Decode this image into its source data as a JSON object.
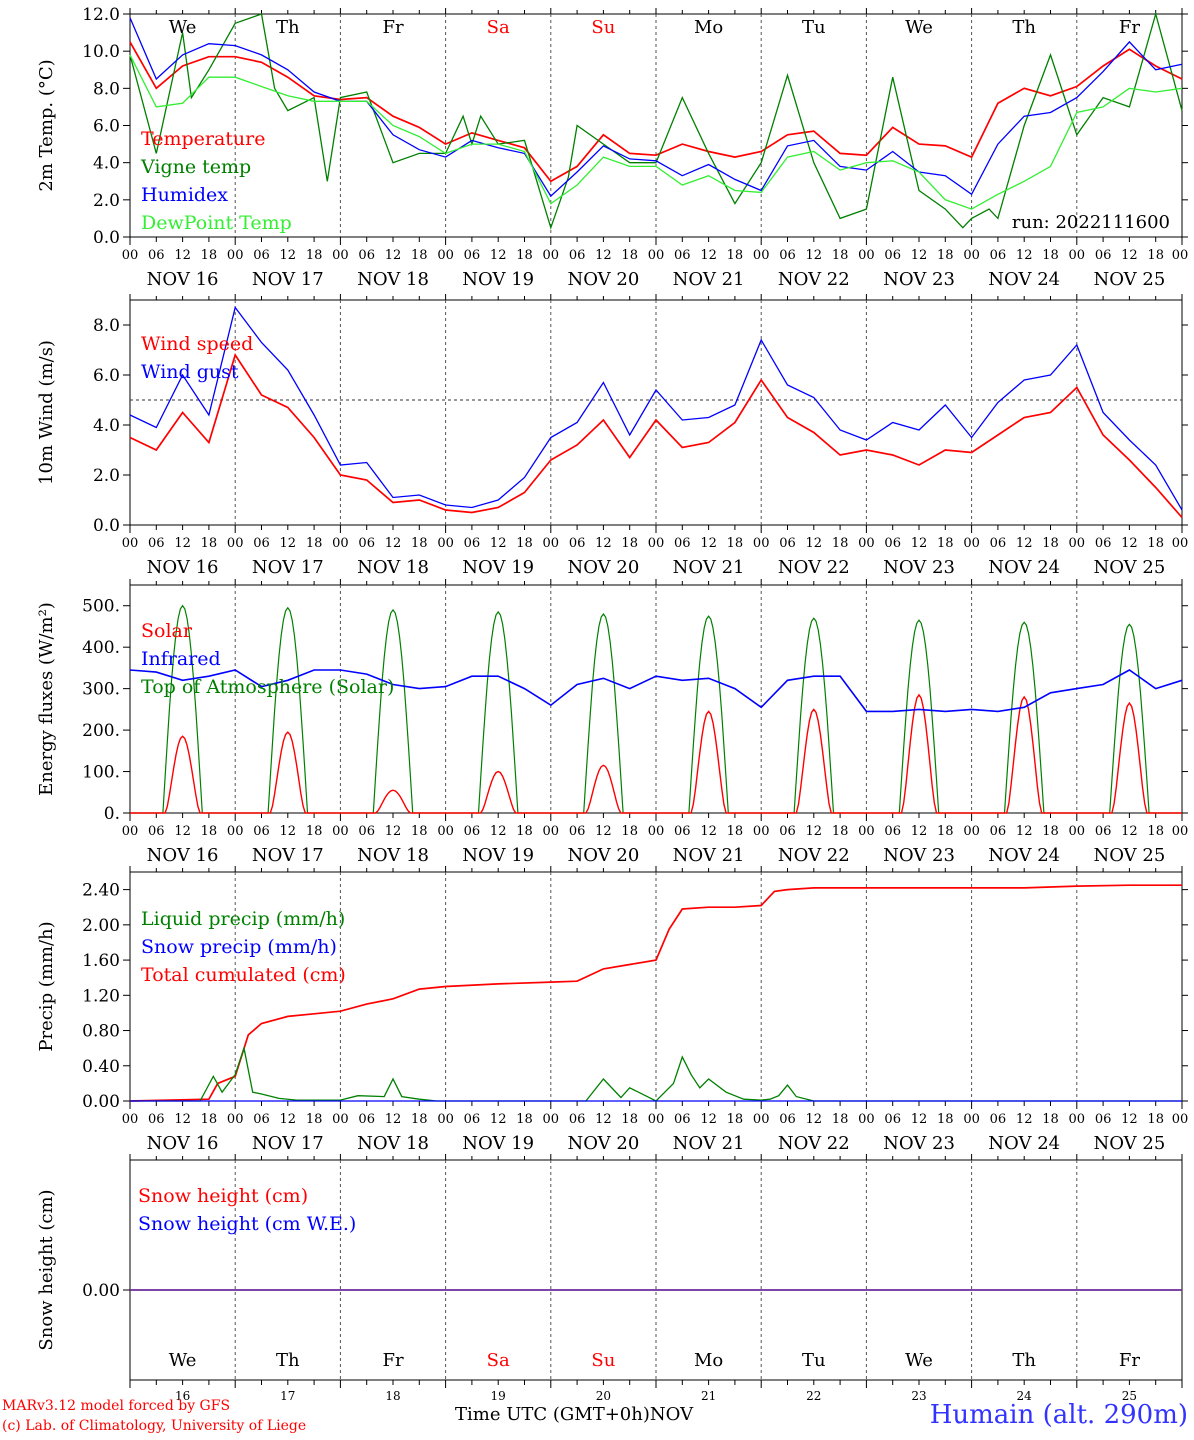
{
  "run_label": "run: 2022111600",
  "footer": {
    "credit_line1": "MARv3.12 model forced by GFS",
    "credit_line2": "(c) Lab. of Climatology, University of Liege",
    "x_title": "Time UTC (GMT+0h)",
    "month": "NOV",
    "station": "Humain (alt. 290m)"
  },
  "days": {
    "labels": [
      "We",
      "Th",
      "Fr",
      "Sa",
      "Su",
      "Mo",
      "Tu",
      "We",
      "Th",
      "Fr"
    ],
    "weekend_color": "#ff0000",
    "weekend_index": [
      3,
      4
    ],
    "dates": [
      "NOV 16",
      "NOV 17",
      "NOV 18",
      "NOV 19",
      "NOV 20",
      "NOV 21",
      "NOV 22",
      "NOV 23",
      "NOV 24",
      "NOV 25"
    ],
    "day_numbers": [
      "16",
      "17",
      "18",
      "19",
      "20",
      "21",
      "22",
      "23",
      "24",
      "25"
    ],
    "hour_ticks": [
      "00",
      "06",
      "12",
      "18"
    ],
    "final_tick": "00"
  },
  "colors": {
    "red": "#ff0000",
    "green": "#008000",
    "blue": "#0000ff",
    "lightgreen": "#33ee33",
    "purple": "#7030a0"
  },
  "chart_data": [
    {
      "id": "temp",
      "type": "line",
      "ylabel": "2m Temp. (°C)",
      "ylim": [
        0,
        12
      ],
      "yticks": [
        "0.0",
        "2.0",
        "4.0",
        "6.0",
        "8.0",
        "10.0",
        "12.0"
      ],
      "x_unit": "hours since 2022-11-16 00 UTC",
      "legend": [
        "Temperature",
        "Vigne temp",
        "Humidex",
        "DewPoint Temp"
      ],
      "series": [
        {
          "name": "Temperature",
          "color": "red",
          "x": [
            0,
            6,
            12,
            18,
            24,
            30,
            36,
            42,
            48,
            54,
            60,
            66,
            72,
            78,
            84,
            90,
            96,
            102,
            108,
            114,
            120,
            126,
            132,
            138,
            144,
            150,
            156,
            162,
            168,
            174,
            180,
            186,
            192,
            198,
            204,
            210,
            216,
            222,
            228,
            234,
            240
          ],
          "y": [
            10.5,
            8.0,
            9.2,
            9.7,
            9.7,
            9.4,
            8.6,
            7.6,
            7.4,
            7.5,
            6.5,
            5.9,
            5.0,
            5.6,
            5.2,
            4.8,
            3.0,
            3.8,
            5.5,
            4.5,
            4.4,
            5.0,
            4.6,
            4.3,
            4.6,
            5.5,
            5.7,
            4.5,
            4.4,
            5.9,
            5.0,
            4.9,
            4.3,
            7.2,
            8.0,
            7.6,
            8.1,
            9.2,
            10.1,
            9.2,
            8.5
          ]
        },
        {
          "name": "Vigne temp",
          "color": "green",
          "x": [
            0,
            6,
            12,
            14,
            18,
            24,
            30,
            33,
            36,
            42,
            45,
            48,
            54,
            60,
            66,
            72,
            76,
            78,
            80,
            84,
            90,
            96,
            100,
            102,
            108,
            114,
            120,
            126,
            132,
            138,
            144,
            150,
            156,
            162,
            168,
            174,
            180,
            186,
            190,
            192,
            196,
            198,
            204,
            210,
            216,
            222,
            228,
            234,
            240
          ],
          "y": [
            9.8,
            4.5,
            11.0,
            7.5,
            9.0,
            11.5,
            12.0,
            8.0,
            6.8,
            7.5,
            3.0,
            7.5,
            7.8,
            4.0,
            4.5,
            4.5,
            6.5,
            5.0,
            6.5,
            5.0,
            5.2,
            0.5,
            3.2,
            6.0,
            5.0,
            4.0,
            4.0,
            7.5,
            4.5,
            1.8,
            4.0,
            8.7,
            4.0,
            1.0,
            1.5,
            8.6,
            2.5,
            1.5,
            0.5,
            1.0,
            1.5,
            1.0,
            6.0,
            9.8,
            5.5,
            7.5,
            7.0,
            12.0,
            6.8
          ]
        },
        {
          "name": "Humidex",
          "color": "blue",
          "x": [
            0,
            6,
            12,
            18,
            24,
            30,
            36,
            42,
            48,
            54,
            60,
            66,
            72,
            78,
            84,
            90,
            96,
            102,
            108,
            114,
            120,
            126,
            132,
            138,
            144,
            150,
            156,
            162,
            168,
            174,
            180,
            186,
            192,
            198,
            204,
            210,
            216,
            222,
            228,
            234,
            240
          ],
          "y": [
            11.8,
            8.5,
            9.8,
            10.4,
            10.3,
            9.8,
            9.0,
            7.8,
            7.3,
            7.3,
            5.5,
            4.7,
            4.3,
            5.2,
            4.8,
            4.5,
            2.2,
            3.5,
            4.9,
            4.2,
            4.1,
            3.3,
            3.9,
            3.1,
            2.5,
            4.9,
            5.2,
            3.8,
            3.6,
            4.6,
            3.5,
            3.3,
            2.3,
            5.0,
            6.5,
            6.7,
            7.5,
            8.9,
            10.5,
            9.0,
            9.3
          ]
        },
        {
          "name": "DewPoint Temp",
          "color": "lightgreen",
          "x": [
            0,
            6,
            12,
            18,
            24,
            30,
            36,
            42,
            48,
            54,
            60,
            66,
            72,
            78,
            84,
            90,
            96,
            102,
            108,
            114,
            120,
            126,
            132,
            138,
            144,
            150,
            156,
            162,
            168,
            174,
            180,
            186,
            192,
            198,
            204,
            210,
            216,
            222,
            228,
            234,
            240
          ],
          "y": [
            9.8,
            7.0,
            7.2,
            8.6,
            8.6,
            8.1,
            7.6,
            7.3,
            7.3,
            7.3,
            6.0,
            5.4,
            4.5,
            5.0,
            5.0,
            4.6,
            1.8,
            2.8,
            4.3,
            3.8,
            3.8,
            2.8,
            3.3,
            2.5,
            2.4,
            4.3,
            4.6,
            3.6,
            4.0,
            4.1,
            3.5,
            2.0,
            1.5,
            2.3,
            3.0,
            3.8,
            6.7,
            7.0,
            8.0,
            7.8,
            8.0
          ]
        }
      ]
    },
    {
      "id": "wind",
      "type": "line",
      "ylabel": "10m Wind (m/s)",
      "ylim": [
        0,
        9
      ],
      "yticks": [
        "0.0",
        "2.0",
        "4.0",
        "6.0",
        "8.0"
      ],
      "reference_line": 5.0,
      "legend": [
        "Wind speed",
        "Wind gust"
      ],
      "series": [
        {
          "name": "Wind speed",
          "color": "red",
          "x": [
            0,
            6,
            12,
            18,
            24,
            30,
            36,
            42,
            48,
            54,
            60,
            66,
            72,
            78,
            84,
            90,
            96,
            102,
            108,
            114,
            120,
            126,
            132,
            138,
            144,
            150,
            156,
            162,
            168,
            174,
            180,
            186,
            192,
            198,
            204,
            210,
            216,
            222,
            228,
            234,
            240
          ],
          "y": [
            3.5,
            3.0,
            4.5,
            3.3,
            6.8,
            5.2,
            4.7,
            3.5,
            2.0,
            1.8,
            0.9,
            1.0,
            0.6,
            0.5,
            0.7,
            1.3,
            2.6,
            3.2,
            4.2,
            2.7,
            4.2,
            3.1,
            3.3,
            4.1,
            5.8,
            4.3,
            3.7,
            2.8,
            3.0,
            2.8,
            2.4,
            3.0,
            2.9,
            3.6,
            4.3,
            4.5,
            5.5,
            3.6,
            2.6,
            1.5,
            0.3
          ]
        },
        {
          "name": "Wind gust",
          "color": "blue",
          "x": [
            0,
            6,
            12,
            18,
            24,
            30,
            36,
            42,
            48,
            54,
            60,
            66,
            72,
            78,
            84,
            90,
            96,
            102,
            108,
            114,
            120,
            126,
            132,
            138,
            144,
            150,
            156,
            162,
            168,
            174,
            180,
            186,
            192,
            198,
            204,
            210,
            216,
            222,
            228,
            234,
            240
          ],
          "y": [
            4.4,
            3.9,
            6.0,
            4.4,
            8.7,
            7.3,
            6.2,
            4.4,
            2.4,
            2.5,
            1.1,
            1.2,
            0.8,
            0.7,
            1.0,
            1.9,
            3.5,
            4.1,
            5.7,
            3.6,
            5.4,
            4.2,
            4.3,
            4.8,
            7.4,
            5.6,
            5.1,
            3.8,
            3.4,
            4.1,
            3.8,
            4.8,
            3.5,
            4.9,
            5.8,
            6.0,
            7.2,
            4.5,
            3.4,
            2.4,
            0.6
          ]
        }
      ]
    },
    {
      "id": "energy",
      "type": "line",
      "ylabel": "Energy fluxes (W/m²)",
      "ylim": [
        0,
        550
      ],
      "yticks": [
        "0.",
        "100.",
        "200.",
        "300.",
        "400.",
        "500."
      ],
      "legend": [
        "Solar",
        "Infrared",
        "Top of Atmosphere (Solar)"
      ],
      "solar_noon_peaks": [
        185,
        195,
        55,
        100,
        115,
        245,
        250,
        285,
        280,
        265
      ],
      "toa_peaks": [
        500,
        495,
        490,
        485,
        480,
        475,
        470,
        465,
        460,
        455
      ],
      "series": [
        {
          "name": "Infrared",
          "color": "blue",
          "x": [
            0,
            6,
            12,
            18,
            24,
            30,
            36,
            42,
            48,
            54,
            60,
            66,
            72,
            78,
            84,
            90,
            96,
            102,
            108,
            114,
            120,
            126,
            132,
            138,
            144,
            150,
            156,
            162,
            168,
            174,
            180,
            186,
            192,
            198,
            204,
            210,
            216,
            222,
            228,
            234,
            240
          ],
          "y": [
            345,
            340,
            320,
            330,
            345,
            305,
            320,
            345,
            345,
            335,
            310,
            300,
            305,
            330,
            330,
            300,
            260,
            310,
            325,
            300,
            330,
            320,
            325,
            300,
            255,
            320,
            330,
            330,
            245,
            245,
            250,
            245,
            250,
            245,
            255,
            290,
            300,
            310,
            345,
            300,
            320
          ]
        }
      ]
    },
    {
      "id": "precip",
      "type": "line",
      "ylabel": "Precip (mm/h)",
      "ylim": [
        0,
        2.6
      ],
      "yticks": [
        "0.00",
        "0.40",
        "0.80",
        "1.20",
        "1.60",
        "2.00",
        "2.40"
      ],
      "legend": [
        "Liquid precip (mm/h)",
        "Snow precip (mm/h)",
        "Total cumulated (cm)"
      ],
      "series": [
        {
          "name": "Total cumulated (cm)",
          "color": "red",
          "x": [
            0,
            18,
            20,
            24,
            27,
            30,
            36,
            42,
            48,
            54,
            60,
            66,
            72,
            84,
            96,
            102,
            108,
            114,
            120,
            123,
            126,
            132,
            138,
            144,
            147,
            150,
            156,
            168,
            180,
            192,
            204,
            216,
            228,
            240
          ],
          "y": [
            0.0,
            0.02,
            0.2,
            0.28,
            0.75,
            0.88,
            0.96,
            0.99,
            1.02,
            1.1,
            1.16,
            1.27,
            1.3,
            1.33,
            1.35,
            1.36,
            1.5,
            1.55,
            1.6,
            1.95,
            2.18,
            2.2,
            2.2,
            2.22,
            2.38,
            2.4,
            2.42,
            2.42,
            2.42,
            2.42,
            2.42,
            2.44,
            2.45,
            2.45
          ]
        },
        {
          "name": "Liquid precip (mm/h)",
          "color": "green",
          "x": [
            0,
            16,
            19,
            21,
            24,
            26,
            28,
            30,
            34,
            38,
            48,
            52,
            58,
            60,
            62,
            66,
            70,
            100,
            104,
            108,
            112,
            114,
            120,
            124,
            126,
            128,
            130,
            132,
            136,
            140,
            144,
            146,
            148,
            150,
            152,
            156,
            240
          ],
          "y": [
            0,
            0,
            0.28,
            0.1,
            0.3,
            0.6,
            0.1,
            0.08,
            0.03,
            0.01,
            0.01,
            0.06,
            0.05,
            0.25,
            0.05,
            0.02,
            0,
            0,
            0,
            0.25,
            0.04,
            0.15,
            0,
            0.2,
            0.5,
            0.3,
            0.15,
            0.25,
            0.1,
            0.02,
            0.01,
            0.02,
            0.06,
            0.18,
            0.05,
            0,
            0
          ]
        },
        {
          "name": "Snow precip (mm/h)",
          "color": "blue",
          "x": [
            0,
            240
          ],
          "y": [
            0,
            0
          ]
        }
      ]
    },
    {
      "id": "snow",
      "type": "line",
      "ylabel": "Snow height (cm)",
      "yticks": [
        "0.00"
      ],
      "legend": [
        "Snow height (cm)",
        "Snow height (cm W.E.)"
      ],
      "series": [
        {
          "name": "Snow height (cm)",
          "color": "red",
          "x": [
            0,
            240
          ],
          "y": [
            0,
            0
          ]
        },
        {
          "name": "Snow height (cm W.E.)",
          "color": "blue",
          "x": [
            0,
            240
          ],
          "y": [
            0,
            0
          ]
        }
      ]
    }
  ]
}
